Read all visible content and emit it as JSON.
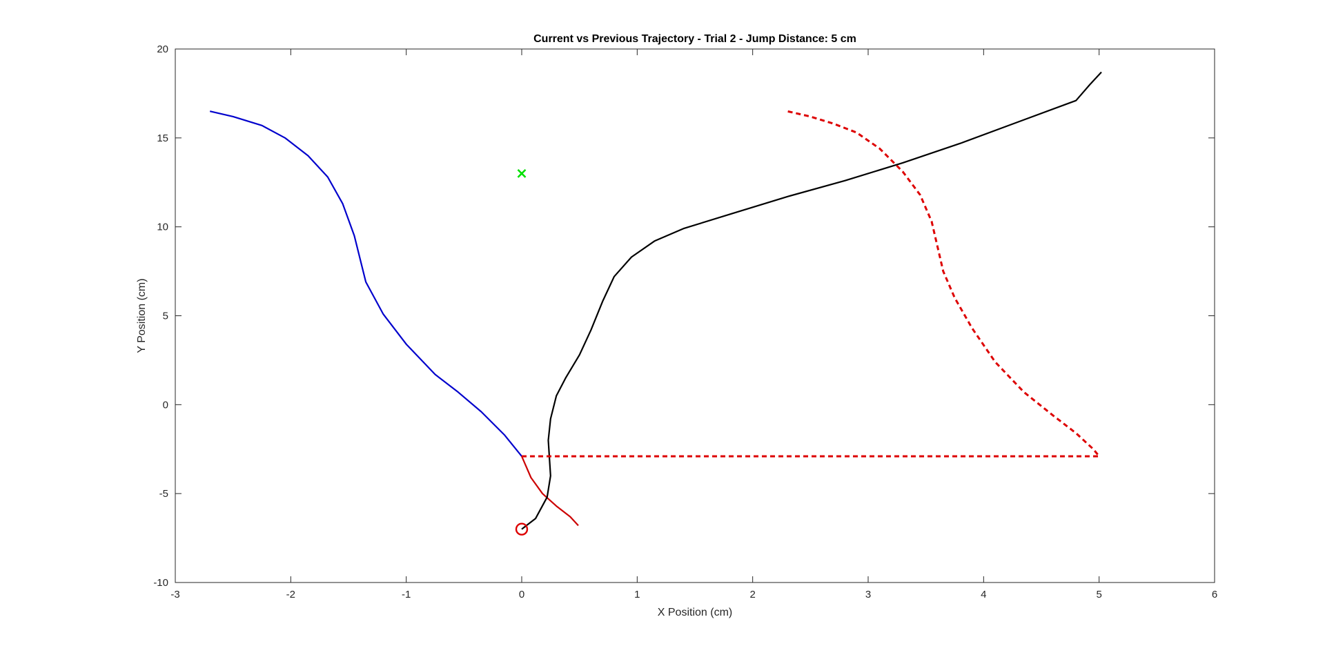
{
  "chart_data": {
    "type": "line",
    "title": "Current vs Previous Trajectory - Trial 2 - Jump Distance: 5 cm",
    "xlabel": "X Position (cm)",
    "ylabel": "Y Position (cm)",
    "xlim": [
      -3,
      6
    ],
    "ylim": [
      -10,
      20
    ],
    "xticks": [
      -3,
      -2,
      -1,
      0,
      1,
      2,
      3,
      4,
      5,
      6
    ],
    "yticks": [
      -10,
      -5,
      0,
      5,
      10,
      15,
      20
    ],
    "xtick_labels": [
      "-3",
      "-2",
      "-1",
      "0",
      "1",
      "2",
      "3",
      "4",
      "5",
      "6"
    ],
    "ytick_labels": [
      "-10",
      "-5",
      "0",
      "5",
      "10",
      "15",
      "20"
    ],
    "grid": false,
    "series": [
      {
        "color": "#0000cc",
        "style": "solid",
        "x": [
          0.0,
          -0.15,
          -0.35,
          -0.55,
          -0.75,
          -1.0,
          -1.2,
          -1.35,
          -1.45,
          -1.55,
          -1.68,
          -1.85,
          -2.05,
          -2.25,
          -2.5,
          -2.7
        ],
        "y": [
          -2.9,
          -1.7,
          -0.4,
          0.7,
          1.7,
          3.4,
          5.1,
          6.9,
          9.5,
          11.3,
          12.8,
          14.0,
          15.0,
          15.7,
          16.2,
          16.5
        ]
      },
      {
        "color": "#cc0000",
        "style": "solid",
        "x": [
          0.0,
          0.08,
          0.18,
          0.3,
          0.42,
          0.49
        ],
        "y": [
          -2.9,
          -4.1,
          -5.0,
          -5.7,
          -6.3,
          -6.8
        ]
      },
      {
        "color": "#000000",
        "style": "solid",
        "x": [
          0.0,
          0.12,
          0.22,
          0.25,
          0.23,
          0.25,
          0.3,
          0.38,
          0.5,
          0.6,
          0.7,
          0.8,
          0.95,
          1.15,
          1.4,
          1.8,
          2.3,
          2.8,
          3.3,
          3.8,
          4.3,
          4.8,
          4.92,
          5.02
        ],
        "y": [
          -7.0,
          -6.4,
          -5.2,
          -4.0,
          -2.0,
          -0.8,
          0.5,
          1.5,
          2.8,
          4.2,
          5.8,
          7.2,
          8.3,
          9.2,
          9.9,
          10.7,
          11.7,
          12.6,
          13.6,
          14.7,
          15.9,
          17.1,
          18.0,
          18.7
        ]
      },
      {
        "color": "#dd0000",
        "style": "dashed",
        "x": [
          0.0,
          5.0,
          4.95,
          4.8,
          4.6,
          4.35,
          4.1,
          3.9,
          3.75,
          3.65,
          3.55,
          3.45,
          3.3,
          3.1,
          2.9,
          2.7,
          2.5,
          2.3
        ],
        "y": [
          -2.9,
          -2.9,
          -2.5,
          -1.6,
          -0.6,
          0.7,
          2.4,
          4.3,
          6.0,
          7.5,
          10.3,
          11.8,
          13.1,
          14.4,
          15.3,
          15.8,
          16.2,
          16.5
        ]
      }
    ],
    "markers": [
      {
        "shape": "x",
        "color": "#00e000",
        "x": 0.0,
        "y": 13.0
      },
      {
        "shape": "circle",
        "color": "#dd0000",
        "x": 0.0,
        "y": -7.0
      }
    ]
  }
}
